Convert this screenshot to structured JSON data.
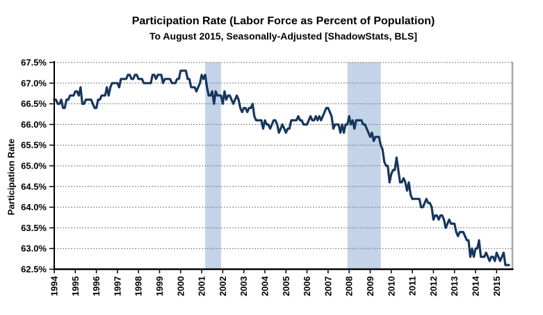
{
  "chart_data": {
    "type": "line",
    "title": "Participation Rate (Labor Force as Percent of Population)",
    "subtitle": "To August 2015, Seasonally-Adjusted [ShadowStats, BLS]",
    "ylabel": "Participation Rate",
    "xlabel": "",
    "legend": "none",
    "grid": true,
    "ylim": [
      62.5,
      67.5
    ],
    "x_range": [
      1994,
      2015.75
    ],
    "y_ticks": [
      "67.5%",
      "67.0%",
      "66.5%",
      "66.0%",
      "65.5%",
      "65.0%",
      "64.5%",
      "64.0%",
      "63.5%",
      "63.0%",
      "62.5%"
    ],
    "x_ticks": [
      "1994",
      "1995",
      "1996",
      "1997",
      "1998",
      "1999",
      "2000",
      "2001",
      "2002",
      "2003",
      "2004",
      "2005",
      "2006",
      "2007",
      "2008",
      "2009",
      "2010",
      "2011",
      "2012",
      "2013",
      "2014",
      "2015"
    ],
    "recession_bands": [
      {
        "start": 2001.17,
        "end": 2001.92
      },
      {
        "start": 2007.92,
        "end": 2009.5
      }
    ],
    "series": [
      {
        "name": "Participation Rate",
        "start_year": 1994,
        "points_per_year": 12,
        "end_label": "August 2015",
        "values": [
          66.6,
          66.6,
          66.5,
          66.5,
          66.6,
          66.4,
          66.4,
          66.6,
          66.6,
          66.7,
          66.7,
          66.7,
          66.8,
          66.8,
          66.7,
          66.9,
          66.5,
          66.5,
          66.6,
          66.6,
          66.6,
          66.6,
          66.5,
          66.4,
          66.4,
          66.6,
          66.6,
          66.7,
          66.7,
          66.7,
          66.9,
          66.7,
          66.9,
          67.0,
          67.0,
          67.0,
          67.0,
          66.9,
          67.1,
          67.1,
          67.1,
          67.1,
          67.2,
          67.2,
          67.1,
          67.1,
          67.2,
          67.2,
          67.1,
          67.1,
          67.1,
          67.0,
          67.0,
          67.0,
          67.0,
          67.0,
          67.2,
          67.2,
          67.1,
          67.2,
          67.2,
          67.2,
          67.0,
          67.1,
          67.1,
          67.1,
          67.1,
          67.0,
          67.0,
          67.0,
          67.1,
          67.1,
          67.3,
          67.3,
          67.3,
          67.3,
          67.1,
          67.1,
          66.9,
          66.9,
          66.9,
          66.8,
          66.9,
          67.0,
          67.2,
          67.1,
          67.2,
          66.9,
          66.7,
          66.7,
          66.8,
          66.5,
          66.8,
          66.7,
          66.7,
          66.7,
          66.5,
          66.8,
          66.6,
          66.7,
          66.7,
          66.6,
          66.5,
          66.6,
          66.7,
          66.6,
          66.4,
          66.3,
          66.4,
          66.4,
          66.3,
          66.4,
          66.4,
          66.5,
          66.2,
          66.1,
          66.1,
          66.1,
          66.1,
          65.9,
          66.1,
          66.0,
          66.0,
          65.9,
          66.0,
          66.1,
          66.1,
          66.0,
          65.8,
          65.9,
          66.0,
          65.9,
          65.8,
          65.9,
          65.9,
          66.1,
          66.1,
          66.1,
          66.1,
          66.2,
          66.1,
          66.1,
          66.0,
          66.0,
          66.0,
          66.1,
          66.2,
          66.1,
          66.1,
          66.2,
          66.1,
          66.2,
          66.1,
          66.2,
          66.3,
          66.4,
          66.4,
          66.3,
          66.2,
          65.9,
          66.0,
          66.0,
          66.0,
          65.8,
          66.0,
          65.8,
          66.0,
          66.0,
          66.2,
          66.0,
          66.1,
          65.9,
          66.1,
          66.1,
          66.1,
          66.1,
          66.0,
          66.0,
          65.9,
          65.8,
          65.7,
          65.8,
          65.6,
          65.7,
          65.7,
          65.7,
          65.5,
          65.4,
          65.1,
          65.0,
          65.0,
          64.6,
          64.8,
          64.9,
          64.9,
          65.2,
          64.9,
          64.6,
          64.6,
          64.7,
          64.6,
          64.4,
          64.6,
          64.3,
          64.2,
          64.2,
          64.2,
          64.2,
          64.2,
          64.0,
          64.0,
          64.1,
          64.2,
          64.1,
          64.1,
          64.0,
          63.7,
          63.8,
          63.8,
          63.7,
          63.8,
          63.8,
          63.7,
          63.5,
          63.6,
          63.7,
          63.6,
          63.6,
          63.6,
          63.4,
          63.3,
          63.4,
          63.4,
          63.4,
          63.3,
          63.2,
          63.2,
          62.8,
          63.0,
          62.8,
          63.0,
          63.0,
          63.2,
          62.8,
          62.8,
          62.8,
          62.9,
          62.8,
          62.7,
          62.8,
          62.8,
          62.7,
          62.9,
          62.8,
          62.7,
          62.8,
          62.9,
          62.6,
          62.6,
          62.6
        ]
      }
    ],
    "colors": {
      "line": "#17365d",
      "band": "#c3d3e8",
      "grid": "#777777",
      "axis": "#000000",
      "plot_border": "#a8a8a8",
      "text": "#000000"
    }
  }
}
